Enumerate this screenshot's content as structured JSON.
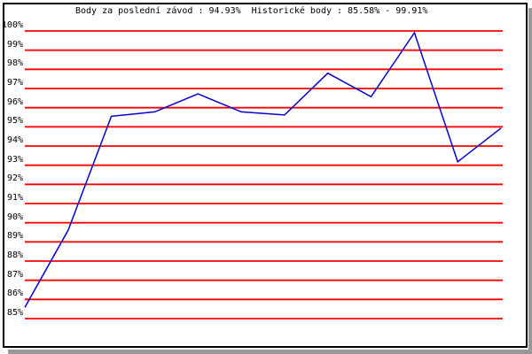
{
  "colors": {
    "background": "#ffffff",
    "grid": "#ff0000",
    "line": "#0000cc",
    "border": "#000000",
    "shadow": "#999999",
    "text": "#000000"
  },
  "stats": {
    "last_race_points": "94.93%",
    "historic_min": "85.58%",
    "historic_max": "99.91%"
  },
  "chart_data": {
    "type": "line",
    "title": "Body za poslední závod : 94.93%  Historické body : 85.58% - 99.91%",
    "xlabel": "",
    "ylabel": "",
    "x_tick_labels_visible": false,
    "num_points": 12,
    "series": [
      {
        "name": "body",
        "values": [
          85.58,
          89.6,
          95.55,
          95.78,
          96.72,
          95.78,
          95.62,
          97.8,
          96.57,
          99.91,
          93.18,
          94.93
        ]
      }
    ],
    "ylim": [
      85,
      100
    ],
    "ytick_step": 1,
    "ytick_labels": [
      "100%",
      "99%",
      "98%",
      "97%",
      "96%",
      "95%",
      "94%",
      "93%",
      "92%",
      "91%",
      "90%",
      "89%",
      "88%",
      "87%",
      "86%",
      "85%"
    ],
    "grid": "horizontal",
    "legend": "none"
  }
}
